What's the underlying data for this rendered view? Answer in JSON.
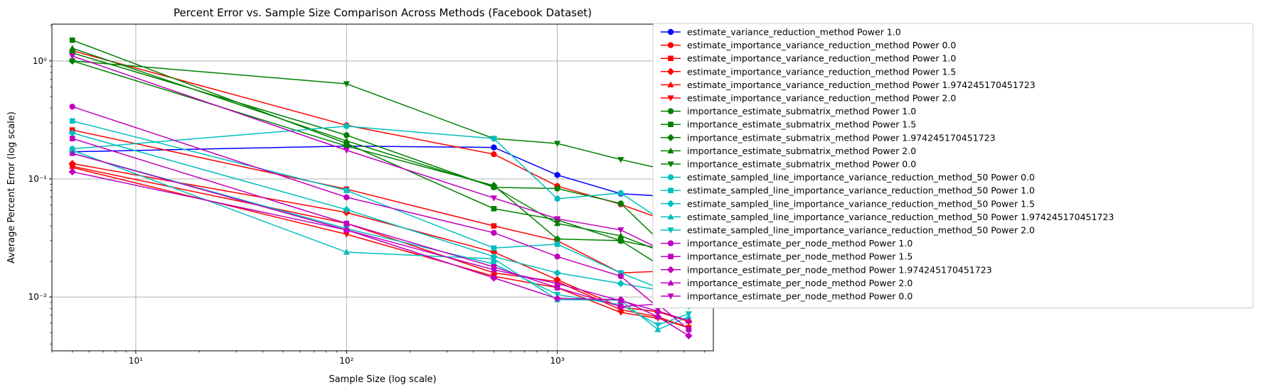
{
  "chart_data": {
    "type": "line",
    "title": "Percent Error vs. Sample Size Comparison Across Methods (Facebook Dataset)",
    "xlabel": "Sample Size (log scale)",
    "ylabel": "Average Percent Error (log scale)",
    "xscale": "log",
    "yscale": "log",
    "xlim": [
      4,
      5500
    ],
    "ylim": [
      0.0035,
      2.05
    ],
    "xticks": [
      {
        "value": 10,
        "label": "10¹"
      },
      {
        "value": 100,
        "label": "10²"
      },
      {
        "value": 1000,
        "label": "10³"
      }
    ],
    "yticks": [
      {
        "value": 0.01,
        "label": "10⁻²"
      },
      {
        "value": 0.1,
        "label": "10⁻¹"
      },
      {
        "value": 1,
        "label": "10⁰"
      }
    ],
    "grid": true,
    "legend_position": "outside-right",
    "x": [
      5,
      100,
      500,
      1000,
      2000,
      3000,
      4200
    ],
    "series": [
      {
        "name": "estimate_variance_reduction_method Power 1.0",
        "color": "#0000ff",
        "marker": "circle",
        "values": [
          0.17,
          0.19,
          0.185,
          0.108,
          0.075,
          0.072,
          0.051
        ]
      },
      {
        "name": "estimate_importance_variance_reduction_method Power 0.0",
        "color": "#ff0000",
        "marker": "circle",
        "values": [
          1.22,
          0.285,
          0.162,
          0.087,
          0.061,
          0.047,
          0.055
        ]
      },
      {
        "name": "estimate_importance_variance_reduction_method Power 1.0",
        "color": "#ff0000",
        "marker": "square",
        "values": [
          0.26,
          0.082,
          0.04,
          0.03,
          0.016,
          0.0165,
          0.0165
        ]
      },
      {
        "name": "estimate_importance_variance_reduction_method Power 1.5",
        "color": "#ff0000",
        "marker": "diamond",
        "values": [
          0.135,
          0.052,
          0.024,
          0.014,
          0.0082,
          0.0075,
          0.0062
        ]
      },
      {
        "name": "estimate_importance_variance_reduction_method Power 1.974245170451723",
        "color": "#ff0000",
        "marker": "triangle-up",
        "values": [
          0.128,
          0.042,
          0.016,
          0.0135,
          0.0078,
          0.0068,
          0.0055
        ]
      },
      {
        "name": "estimate_importance_variance_reduction_method Power 2.0",
        "color": "#ff0000",
        "marker": "triangle-down",
        "values": [
          0.125,
          0.034,
          0.015,
          0.012,
          0.0074,
          0.0066,
          0.0055
        ]
      },
      {
        "name": "importance_estimate_submatrix_method Power 1.0",
        "color": "#008000",
        "marker": "circle",
        "values": [
          1.17,
          0.235,
          0.085,
          0.083,
          0.062,
          0.031,
          0.027
        ]
      },
      {
        "name": "importance_estimate_submatrix_method Power 1.5",
        "color": "#008000",
        "marker": "square",
        "values": [
          1.5,
          0.2,
          0.056,
          0.045,
          0.03,
          0.019,
          0.022
        ]
      },
      {
        "name": "importance_estimate_submatrix_method Power 1.974245170451723",
        "color": "#008000",
        "marker": "diamond",
        "values": [
          1.0,
          0.19,
          0.088,
          0.031,
          0.03,
          0.026,
          0.018
        ]
      },
      {
        "name": "importance_estimate_submatrix_method Power 2.0",
        "color": "#008000",
        "marker": "triangle-up",
        "values": [
          1.28,
          0.21,
          0.086,
          0.042,
          0.033,
          0.025,
          0.026
        ]
      },
      {
        "name": "importance_estimate_submatrix_method Power 0.0",
        "color": "#008000",
        "marker": "triangle-down",
        "values": [
          1.0,
          0.64,
          0.22,
          0.2,
          0.146,
          0.124,
          0.083
        ]
      },
      {
        "name": "estimate_sampled_line_importance_variance_reduction_method_50 Power 0.0",
        "color": "#00bfbf",
        "marker": "circle",
        "values": [
          0.18,
          0.28,
          0.22,
          0.068,
          0.076,
          0.047,
          0.055
        ]
      },
      {
        "name": "estimate_sampled_line_importance_variance_reduction_method_50 Power 1.0",
        "color": "#00bfbf",
        "marker": "square",
        "values": [
          0.31,
          0.08,
          0.026,
          0.028,
          0.016,
          0.012,
          0.013
        ]
      },
      {
        "name": "estimate_sampled_line_importance_variance_reduction_method_50 Power 1.5",
        "color": "#00bfbf",
        "marker": "diamond",
        "values": [
          0.245,
          0.055,
          0.022,
          0.016,
          0.013,
          0.0115,
          0.0084
        ]
      },
      {
        "name": "estimate_sampled_line_importance_variance_reduction_method_50 Power 1.974245170451723",
        "color": "#00bfbf",
        "marker": "triangle-up",
        "values": [
          0.175,
          0.024,
          0.021,
          0.0095,
          0.0094,
          0.0053,
          0.0068
        ]
      },
      {
        "name": "estimate_sampled_line_importance_variance_reduction_method_50 Power 2.0",
        "color": "#00bfbf",
        "marker": "triangle-down",
        "values": [
          0.165,
          0.038,
          0.019,
          0.0105,
          0.0086,
          0.0058,
          0.0072
        ]
      },
      {
        "name": "importance_estimate_per_node_method Power 1.0",
        "color": "#bf00bf",
        "marker": "circle",
        "values": [
          0.41,
          0.07,
          0.035,
          0.022,
          0.015,
          0.0082,
          0.0127
        ]
      },
      {
        "name": "importance_estimate_per_node_method Power 1.5",
        "color": "#bf00bf",
        "marker": "square",
        "values": [
          0.22,
          0.042,
          0.018,
          0.012,
          0.0083,
          0.0087,
          0.0053
        ]
      },
      {
        "name": "importance_estimate_per_node_method Power 1.974245170451723",
        "color": "#bf00bf",
        "marker": "diamond",
        "values": [
          0.115,
          0.037,
          0.0145,
          0.0097,
          0.0095,
          0.0068,
          0.0047
        ]
      },
      {
        "name": "importance_estimate_per_node_method Power 2.0",
        "color": "#bf00bf",
        "marker": "triangle-up",
        "values": [
          0.165,
          0.037,
          0.017,
          0.013,
          0.0093,
          0.0076,
          0.0063
        ]
      },
      {
        "name": "importance_estimate_per_node_method Power 0.0",
        "color": "#bf00bf",
        "marker": "triangle-down",
        "values": [
          1.1,
          0.175,
          0.069,
          0.046,
          0.037,
          0.026,
          0.025
        ]
      }
    ]
  }
}
